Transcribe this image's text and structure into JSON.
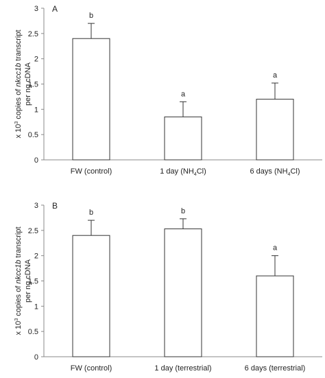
{
  "chart_data": [
    {
      "type": "bar",
      "panel_label": "A",
      "categories": [
        "FW (control)",
        "1 day (NH4Cl)",
        "6 days (NH4Cl)"
      ],
      "category_parts": [
        {
          "before": "FW (control)",
          "sub": "",
          "after": ""
        },
        {
          "before": "1 day (NH",
          "sub": "4",
          "after": "Cl)"
        },
        {
          "before": "6 days (NH",
          "sub": "4",
          "after": "Cl)"
        }
      ],
      "values": [
        2.4,
        0.85,
        1.2
      ],
      "errors": [
        0.3,
        0.3,
        0.32
      ],
      "significance": [
        "b",
        "a",
        "a"
      ],
      "ylim": [
        0,
        3
      ],
      "yticks": [
        "0",
        "0.5",
        "1",
        "1.5",
        "2",
        "2.5",
        "3"
      ],
      "ylabel": {
        "line1_prefix": "x 10",
        "line1_sup": "3",
        "line1_mid": " copies of ",
        "line1_italic": "nkcc1b",
        "line1_suffix": " transcript",
        "line2": "per ng cDNA"
      }
    },
    {
      "type": "bar",
      "panel_label": "B",
      "categories": [
        "FW (control)",
        "1 day (terrestrial)",
        "6 days (terrestrial)"
      ],
      "category_parts": [
        {
          "before": "FW (control)",
          "sub": "",
          "after": ""
        },
        {
          "before": "1 day (terrestrial)",
          "sub": "",
          "after": ""
        },
        {
          "before": "6 days (terrestrial)",
          "sub": "",
          "after": ""
        }
      ],
      "values": [
        2.4,
        2.53,
        1.6
      ],
      "errors": [
        0.3,
        0.2,
        0.4
      ],
      "significance": [
        "b",
        "b",
        "a"
      ],
      "ylim": [
        0,
        3
      ],
      "yticks": [
        "0",
        "0.5",
        "1",
        "1.5",
        "2",
        "2.5",
        "3"
      ],
      "ylabel": {
        "line1_prefix": "x 10",
        "line1_sup": "3",
        "line1_mid": " copies of ",
        "line1_italic": "nkcc1b",
        "line1_suffix": " transcript",
        "line2": "per ng cDNA"
      }
    }
  ]
}
